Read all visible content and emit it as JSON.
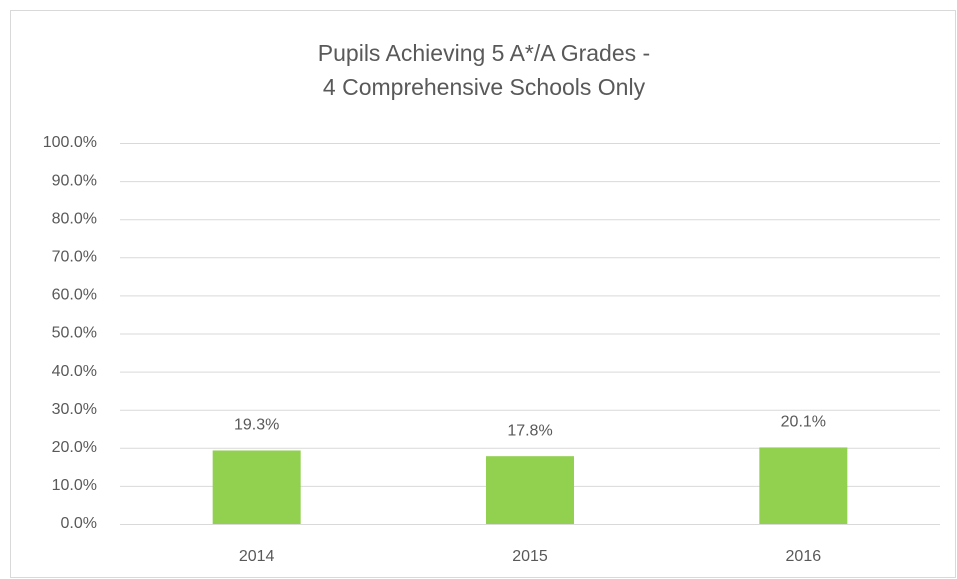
{
  "chart_data": {
    "type": "bar",
    "title": [
      "Pupils Achieving 5 A*/A Grades -",
      "4 Comprehensive Schools Only"
    ],
    "categories": [
      "2014",
      "2015",
      "2016"
    ],
    "values": [
      19.3,
      17.8,
      20.1
    ],
    "value_labels": [
      "19.3%",
      "17.8%",
      "20.1%"
    ],
    "color": "#92d050",
    "ylim": [
      0,
      100
    ],
    "yticks": [
      {
        "value": 0,
        "label": "0.0%"
      },
      {
        "value": 10,
        "label": "10.0%"
      },
      {
        "value": 20,
        "label": "20.0%"
      },
      {
        "value": 30,
        "label": "30.0%"
      },
      {
        "value": 40,
        "label": "40.0%"
      },
      {
        "value": 50,
        "label": "50.0%"
      },
      {
        "value": 60,
        "label": "60.0%"
      },
      {
        "value": 70,
        "label": "70.0%"
      },
      {
        "value": 80,
        "label": "80.0%"
      },
      {
        "value": 90,
        "label": "90.0%"
      },
      {
        "value": 100,
        "label": "100.0%"
      }
    ],
    "grid": true
  }
}
